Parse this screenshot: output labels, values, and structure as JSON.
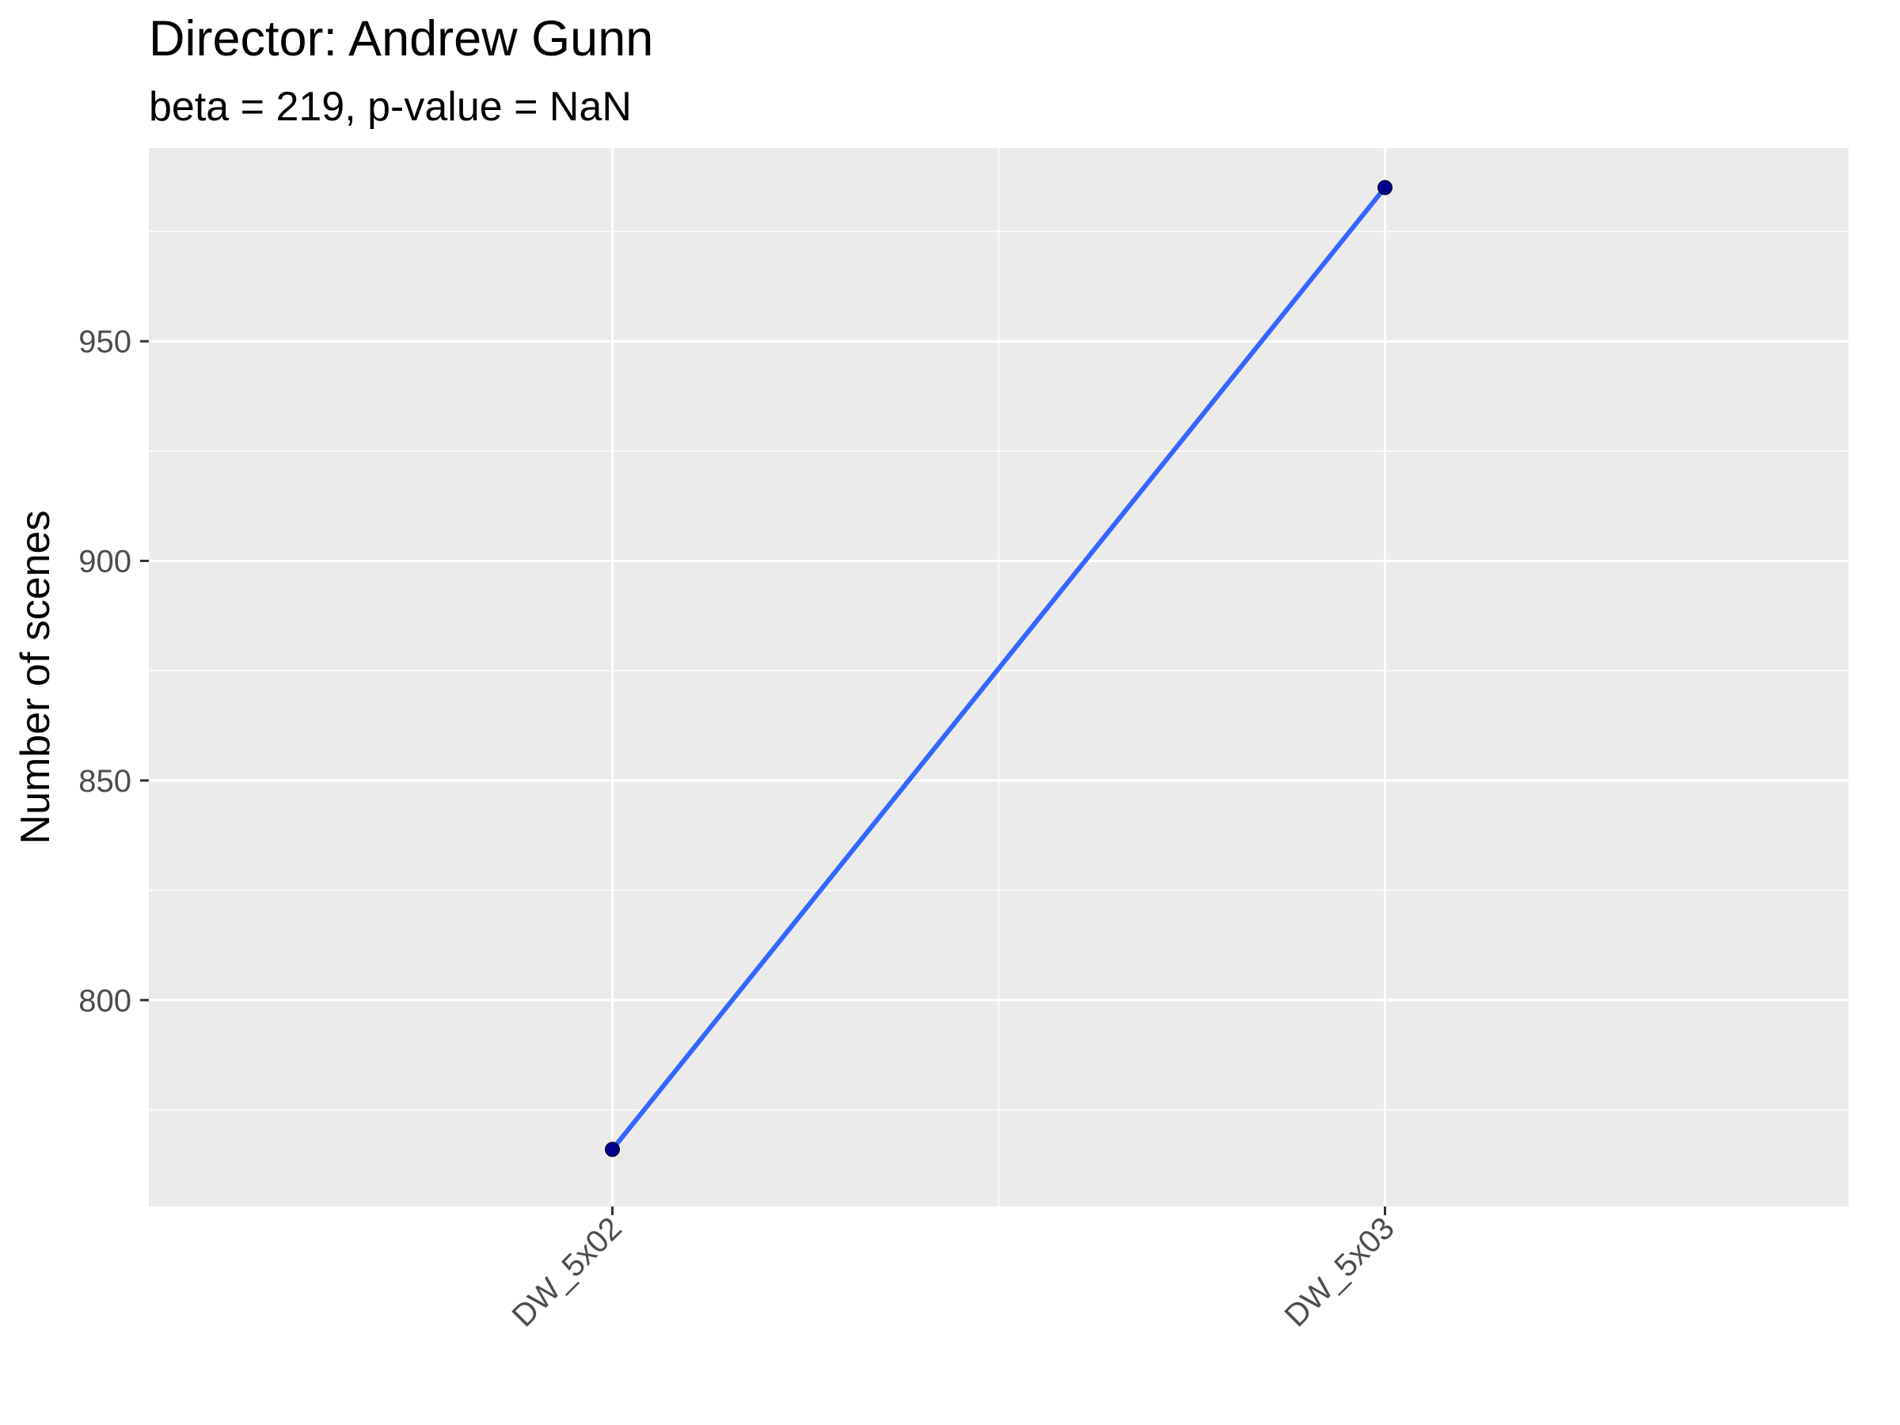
{
  "chart_data": {
    "type": "line",
    "title": "Director: Andrew Gunn",
    "subtitle": "beta = 219, p-value = NaN",
    "xlabel": "",
    "ylabel": "Number of scenes",
    "categories": [
      "DW_5x02",
      "DW_5x03"
    ],
    "series": [
      {
        "values": [
          766,
          985
        ]
      }
    ],
    "ylim": [
      753,
      994
    ],
    "y_ticks": [
      800,
      850,
      900,
      950
    ],
    "grid": true,
    "legend": "none",
    "colors": {
      "panel_background": "#ebebeb",
      "grid": "#ffffff",
      "line": "#3366ff",
      "points": "#00008b",
      "tick_text": "#4d4d4d",
      "tick_marks": "#333333"
    }
  }
}
